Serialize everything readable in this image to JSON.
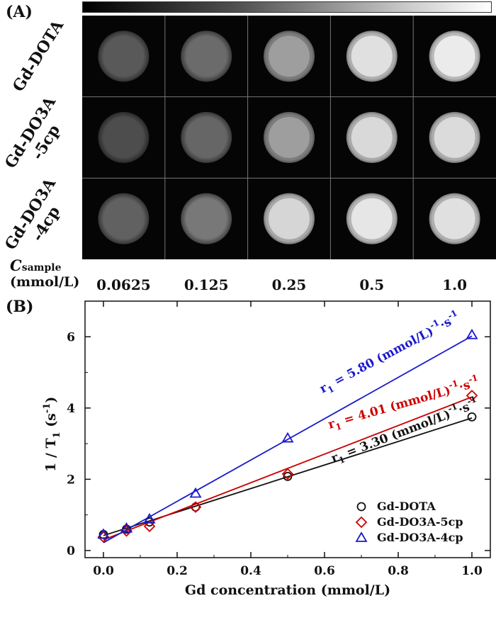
{
  "panel_a": {
    "label": "(A)",
    "rows": [
      "Gd-DOTA",
      "Gd-DO3A\n-5cp",
      "Gd-DO3A\n-4cp"
    ],
    "row_label_lines": [
      [
        "Gd-DOTA"
      ],
      [
        "Gd-DO3A",
        "-5cp"
      ],
      [
        "Gd-DO3A",
        "-4cp"
      ]
    ],
    "csample_prefix": "C",
    "csample_sub": "sample",
    "csample_unit": "(mmol/L)",
    "concentrations": [
      "0.0625",
      "0.125",
      "0.25",
      "0.5",
      "1.0"
    ],
    "intensity": [
      [
        0.35,
        0.42,
        0.62,
        0.88,
        0.92
      ],
      [
        0.3,
        0.4,
        0.62,
        0.85,
        0.86
      ],
      [
        0.38,
        0.47,
        0.84,
        0.9,
        0.88
      ]
    ]
  },
  "panel_b": {
    "label": "(B)"
  },
  "chart_data": {
    "type": "scatter",
    "xlabel": "Gd concentration (mmol/L)",
    "ylabel": "1 / T1 (s-1)",
    "xlim": [
      -0.05,
      1.05
    ],
    "ylim": [
      -0.2,
      7
    ],
    "xticks": [
      "0.0",
      "0.2",
      "0.4",
      "0.6",
      "0.8",
      "1.0"
    ],
    "yticks": [
      "0",
      "2",
      "4",
      "6"
    ],
    "series": [
      {
        "name": "Gd-DOTA",
        "marker": "circle",
        "color": "#111111",
        "x": [
          0,
          0.0625,
          0.125,
          0.25,
          0.5,
          1.0
        ],
        "y": [
          0.45,
          0.6,
          0.8,
          1.22,
          2.08,
          3.75
        ],
        "fit": {
          "slope": 3.3,
          "intercept": 0.42
        },
        "equation": "r1 = 3.30 (mmol/L)-1·s-1"
      },
      {
        "name": "Gd-DO3A-5cp",
        "marker": "diamond",
        "color": "#cc0000",
        "x": [
          0,
          0.0625,
          0.125,
          0.25,
          0.5,
          1.0
        ],
        "y": [
          0.38,
          0.55,
          0.68,
          1.22,
          2.15,
          4.35
        ],
        "fit": {
          "slope": 4.01,
          "intercept": 0.3
        },
        "equation": "r1 = 4.01 (mmol/L)-1·s-1"
      },
      {
        "name": "Gd-DO3A-4cp",
        "marker": "triangle",
        "color": "#1a1acc",
        "x": [
          0,
          0.0625,
          0.125,
          0.25,
          0.5,
          1.0
        ],
        "y": [
          0.45,
          0.62,
          0.88,
          1.6,
          3.15,
          6.05
        ],
        "fit": {
          "slope": 5.8,
          "intercept": 0.22
        },
        "equation": "r1 = 5.80 (mmol/L)-1·s-1"
      }
    ],
    "legend_position": "bottom-right"
  }
}
